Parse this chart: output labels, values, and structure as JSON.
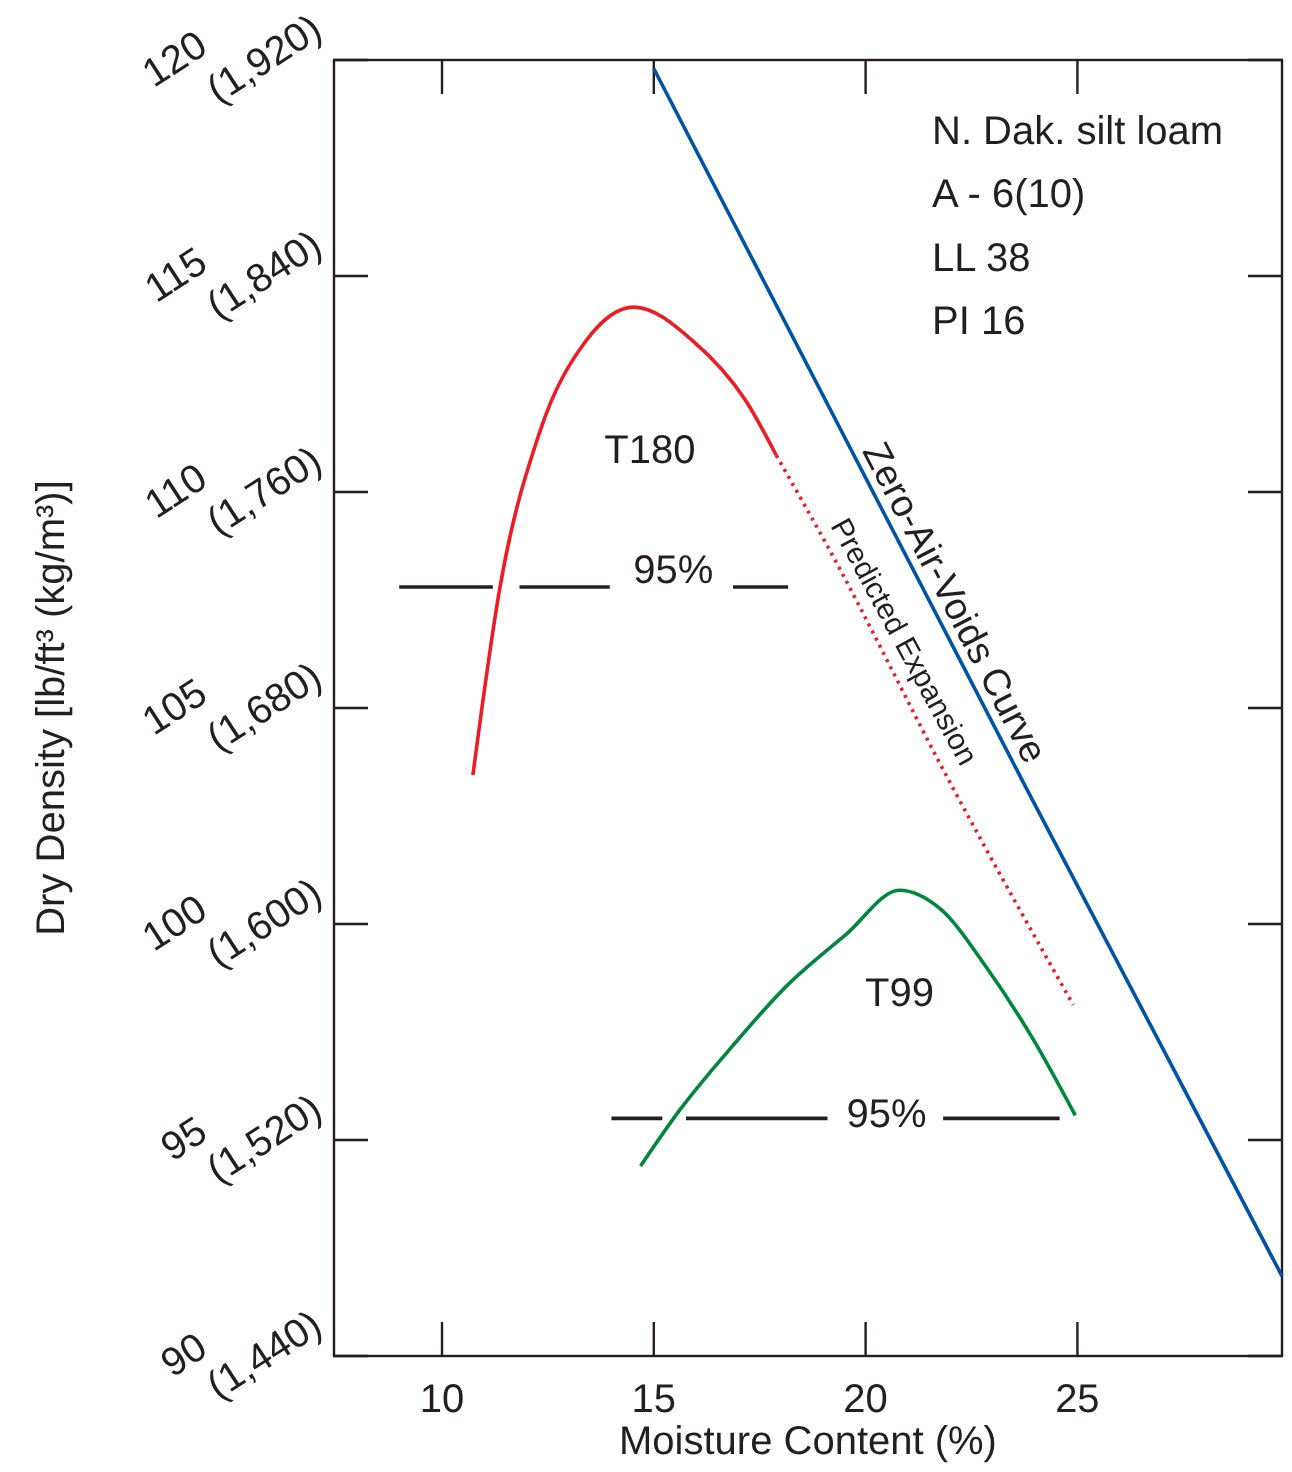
{
  "chart_data": {
    "type": "line",
    "xlabel": "Moisture Content (%)",
    "ylabel": "Dry Density [lb/ft³ (kg/m³)]",
    "xlim": [
      7.45,
      29.83
    ],
    "ylim": [
      90,
      120
    ],
    "xticks": [
      10,
      15,
      20,
      25
    ],
    "yticks": [
      90,
      95,
      100,
      105,
      110,
      115,
      120
    ],
    "y2lim": [
      1440,
      1920
    ],
    "y2ticks": [
      {
        "value": 1440,
        "label": "(1,440)"
      },
      {
        "value": 1520,
        "label": "(1,520)"
      },
      {
        "value": 1600,
        "label": "(1,600)"
      },
      {
        "value": 1680,
        "label": "(1,680)"
      },
      {
        "value": 1760,
        "label": "(1,760)"
      },
      {
        "value": 1840,
        "label": "(1,840)"
      },
      {
        "value": 1920,
        "label": "(1,920)"
      }
    ],
    "legend": false,
    "series": [
      {
        "name": "T180",
        "color": "#ed1c24",
        "line_style": "solid",
        "x": [
          10.73,
          11.36,
          12.3,
          13.4,
          14.53,
          15.92,
          17.18,
          17.89
        ],
        "values": [
          103.45,
          107.75,
          111.37,
          113.5,
          114.28,
          113.5,
          112.1,
          110.85
        ]
      },
      {
        "name": "Predicted Expansion",
        "color": "#ed1c24",
        "line_style": "dotted",
        "x": [
          17.89,
          19.07,
          22.06,
          24.9
        ],
        "values": [
          110.85,
          108.8,
          103.15,
          98.13
        ]
      },
      {
        "name": "T99",
        "color": "#00873e",
        "line_style": "solid",
        "x": [
          14.69,
          15.61,
          16.87,
          18.12,
          19.54,
          20.8,
          21.75,
          22.85,
          23.95,
          24.95
        ],
        "values": [
          94.4,
          95.69,
          97.19,
          98.55,
          99.76,
          100.78,
          100.36,
          99.0,
          97.34,
          95.57
        ]
      },
      {
        "name": "Zero-Air-Voids Curve",
        "color": "#0054a6",
        "line_style": "solid",
        "x": [
          15.0,
          23.78,
          29.83
        ],
        "values": [
          119.8,
          103.17,
          91.85
        ]
      },
      {
        "color": "#231f20",
        "line_style": "solid",
        "x": [
          8.99,
          11.2,
          11.5,
          11.83,
          13.96,
          15.4,
          16.87,
          18.17
        ],
        "values": [
          107.8,
          107.8,
          null,
          107.8,
          107.8,
          null,
          107.8,
          107.8
        ]
      },
      {
        "color": "#231f20",
        "line_style": "solid",
        "x": [
          14.0,
          15.2,
          15.5,
          15.76,
          19.1,
          20.5,
          21.83,
          24.58
        ],
        "values": [
          95.5,
          95.5,
          null,
          95.5,
          95.5,
          null,
          95.5,
          95.5
        ]
      }
    ],
    "annotations": [
      "N. Dak. silt loam",
      "A - 6(10)",
      "LL 38",
      "PI 16",
      "95%",
      "95%"
    ]
  }
}
